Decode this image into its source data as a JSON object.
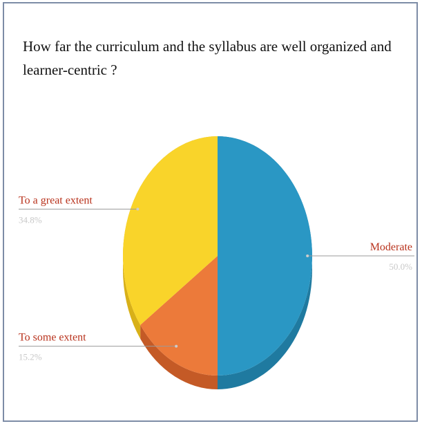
{
  "chart_title": "How far the curriculum and the syllabus are well organized and learner-centric ?",
  "chart_data": {
    "type": "pie",
    "title": "How far the curriculum and the syllabus are well organized and learner-centric ?",
    "categories": [
      "Moderate",
      "To some extent",
      "To a great extent"
    ],
    "values": [
      50.0,
      15.2,
      34.8
    ],
    "value_labels": [
      "50.0%",
      "15.2%",
      "34.8%"
    ],
    "colors": [
      "#2a97c4",
      "#ec7a3a",
      "#f9d42a"
    ],
    "side_colors": [
      "#1f7aa0",
      "#c45a26",
      "#d8b018"
    ],
    "label_color": "#b8321c",
    "percent_color": "#c8c8c8",
    "legend": "none",
    "style": "3d"
  }
}
